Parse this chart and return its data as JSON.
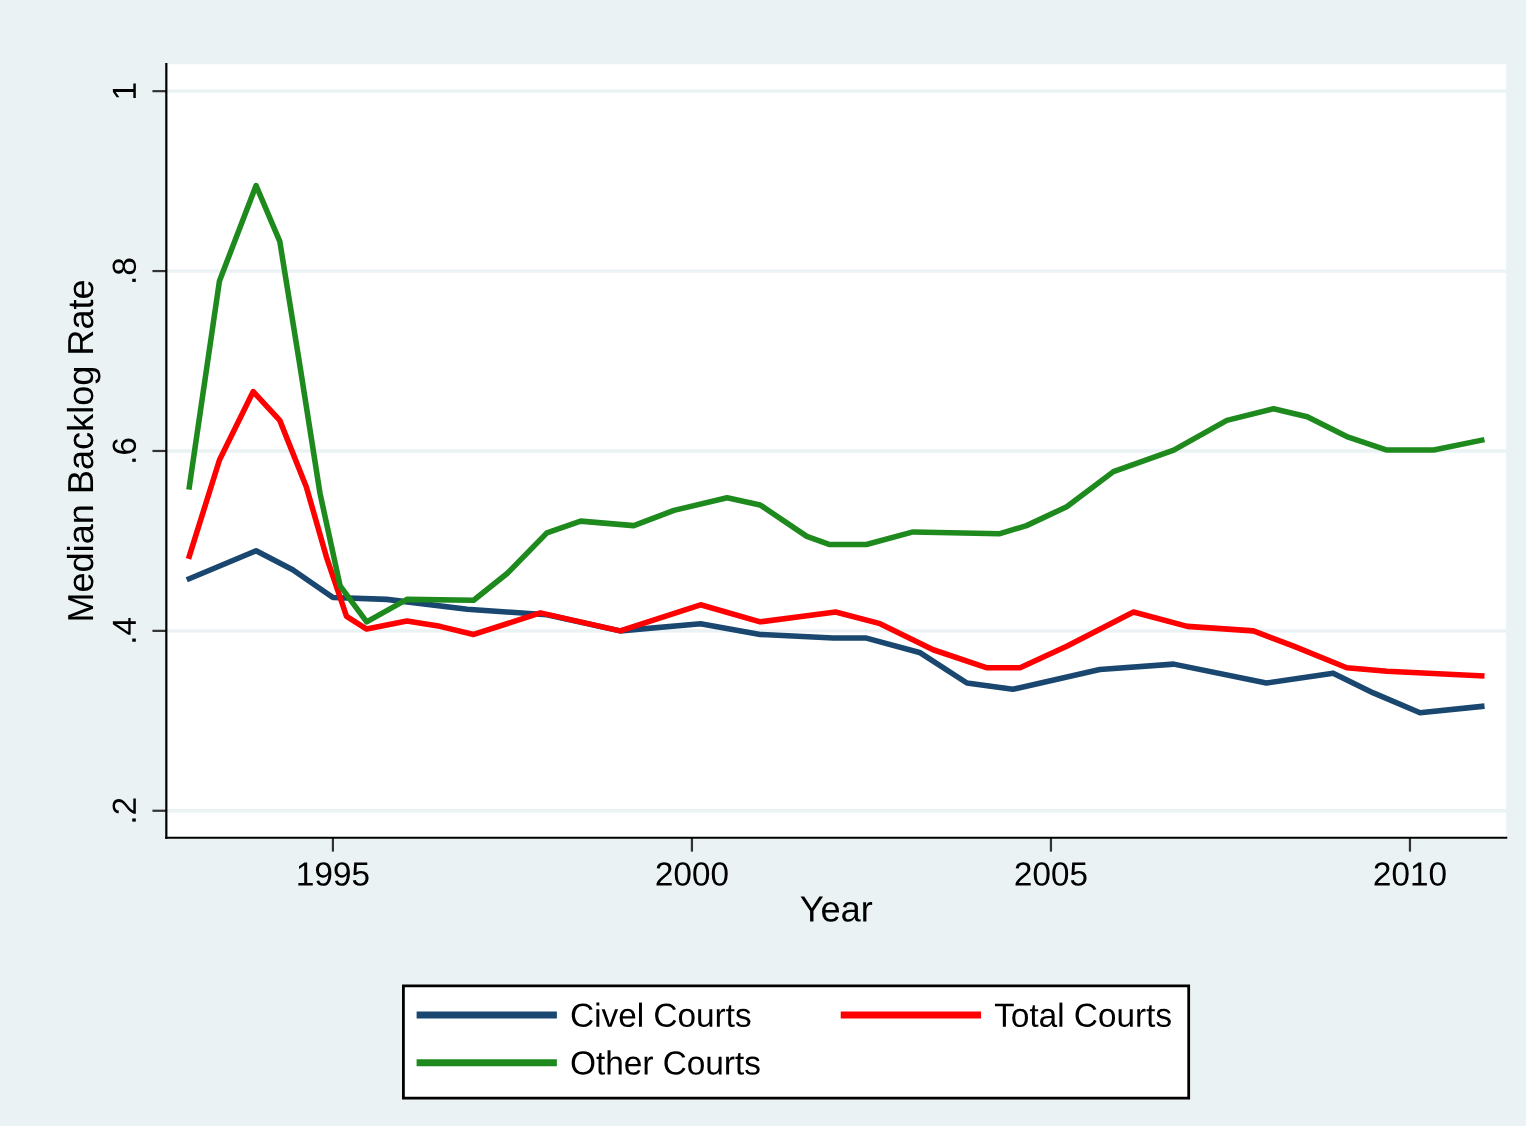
{
  "chart_data": {
    "type": "line",
    "xlabel": "Year",
    "ylabel": "Median Backlog Rate",
    "xlim": [
      1992.68,
      2011.34
    ],
    "xticks": [
      1995,
      2000,
      2005,
      2010
    ],
    "ylim": [
      0.17,
      1.03
    ],
    "yticks": [
      {
        "value": 0.2,
        "label": ".2"
      },
      {
        "value": 0.4,
        "label": ".4"
      },
      {
        "value": 0.6,
        "label": ".6"
      },
      {
        "value": 0.8,
        "label": ".8"
      },
      {
        "value": 1,
        "label": "1"
      }
    ],
    "grid": "y",
    "legend": "bottom",
    "marker": "none",
    "line_style": "solid",
    "series": [
      {
        "name": "Civel Courts",
        "color": "#1a476f",
        "x": [
          1993.0,
          1993.93,
          1994.44,
          1995.0,
          1995.75,
          1996.87,
          1997.98,
          1999.0,
          2000.12,
          2000.95,
          2001.97,
          2002.43,
          2003.17,
          2003.83,
          2004.47,
          2005.68,
          2006.71,
          2008.0,
          2008.93,
          2009.49,
          2010.14,
          2011.0
        ],
        "values": [
          0.458,
          0.489,
          0.468,
          0.437,
          0.435,
          0.424,
          0.418,
          0.4,
          0.408,
          0.396,
          0.392,
          0.392,
          0.376,
          0.342,
          0.335,
          0.357,
          0.363,
          0.342,
          0.353,
          0.331,
          0.309,
          0.316
        ]
      },
      {
        "name": "Total Courts",
        "color": "#ff0000",
        "x": [
          1993.0,
          1993.42,
          1993.89,
          1994.26,
          1994.63,
          1994.91,
          1995.19,
          1995.47,
          1996.03,
          1996.49,
          1996.96,
          1997.89,
          1999.0,
          2000.12,
          2000.95,
          2002.0,
          2002.62,
          2003.36,
          2004.1,
          2004.57,
          2005.22,
          2006.15,
          2006.9,
          2007.82,
          2008.38,
          2009.12,
          2009.68,
          2011.0
        ],
        "values": [
          0.483,
          0.59,
          0.666,
          0.634,
          0.56,
          0.482,
          0.416,
          0.402,
          0.411,
          0.405,
          0.396,
          0.42,
          0.4,
          0.429,
          0.41,
          0.421,
          0.408,
          0.379,
          0.359,
          0.359,
          0.383,
          0.421,
          0.405,
          0.4,
          0.383,
          0.359,
          0.355,
          0.35
        ]
      },
      {
        "name": "Other Courts",
        "color": "#1e8a1e",
        "x": [
          1993.0,
          1993.42,
          1993.93,
          1994.26,
          1994.53,
          1994.82,
          1995.1,
          1995.47,
          1996.03,
          1996.96,
          1997.43,
          1997.98,
          1998.45,
          1999.19,
          1999.75,
          2000.49,
          2000.95,
          2001.6,
          2001.92,
          2002.43,
          2003.08,
          2004.29,
          2004.66,
          2005.22,
          2005.87,
          2006.71,
          2007.45,
          2008.1,
          2008.57,
          2009.12,
          2009.68,
          2010.33,
          2011.0
        ],
        "values": [
          0.56,
          0.789,
          0.895,
          0.833,
          0.7,
          0.553,
          0.45,
          0.41,
          0.435,
          0.434,
          0.464,
          0.509,
          0.522,
          0.517,
          0.534,
          0.548,
          0.54,
          0.505,
          0.496,
          0.496,
          0.51,
          0.508,
          0.517,
          0.538,
          0.577,
          0.601,
          0.634,
          0.647,
          0.638,
          0.616,
          0.601,
          0.601,
          0.612
        ]
      }
    ]
  }
}
